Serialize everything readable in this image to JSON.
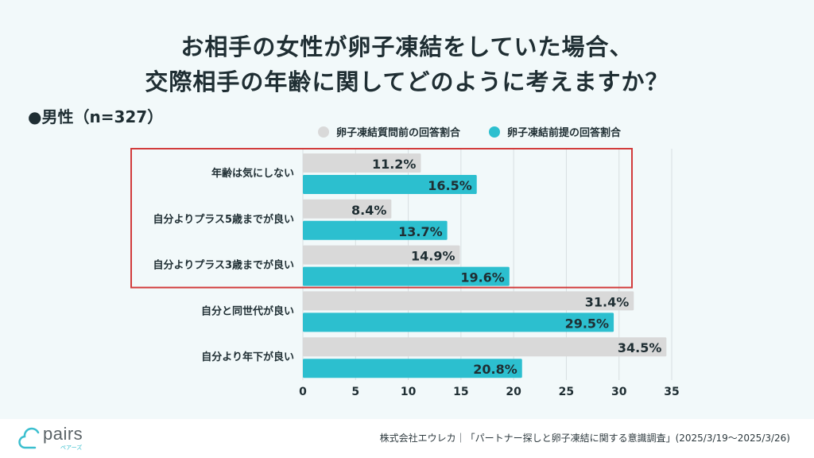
{
  "title": {
    "line1": "お相手の女性が卵子凍結をしていた場合、",
    "line2": "交際相手の年齢に関してどのように考えますか？"
  },
  "subheading": "●男性（n=327）",
  "legend": [
    {
      "label": "卵子凍結質問前の回答割合",
      "color": "#d9d9d9"
    },
    {
      "label": "卵子凍結前提の回答割合",
      "color": "#2cbfcf"
    }
  ],
  "chart_data": {
    "type": "bar",
    "orientation": "horizontal",
    "title": "お相手の女性が卵子凍結をしていた場合、交際相手の年齢に関してどのように考えますか？",
    "xlabel": "",
    "ylabel": "",
    "categories": [
      "年齢は気にしない",
      "自分よりプラス5歳までが良い",
      "自分よりプラス3歳までが良い",
      "自分と同世代が良い",
      "自分より年下が良い"
    ],
    "series": [
      {
        "name": "卵子凍結質問前の回答割合",
        "color": "#d9d9d9",
        "values": [
          11.2,
          8.4,
          14.9,
          31.4,
          34.5
        ]
      },
      {
        "name": "卵子凍結前提の回答割合",
        "color": "#2cbfcf",
        "values": [
          16.5,
          13.7,
          19.6,
          29.5,
          20.8
        ]
      }
    ],
    "value_suffix": "%",
    "xlim": [
      0,
      35
    ],
    "xticks": [
      0,
      5,
      10,
      15,
      20,
      25,
      30,
      35
    ],
    "grid": true,
    "legend_position": "top",
    "highlight": {
      "categories": [
        0,
        1,
        2
      ],
      "color": "#d23c3c"
    }
  },
  "footer": {
    "logo": "pairs",
    "logo_sub": "ペアーズ",
    "source": "株式会社エウレカ｜「パートナー探しと卵子凍結に関する意識調査」(2025/3/19〜2025/3/26)"
  }
}
